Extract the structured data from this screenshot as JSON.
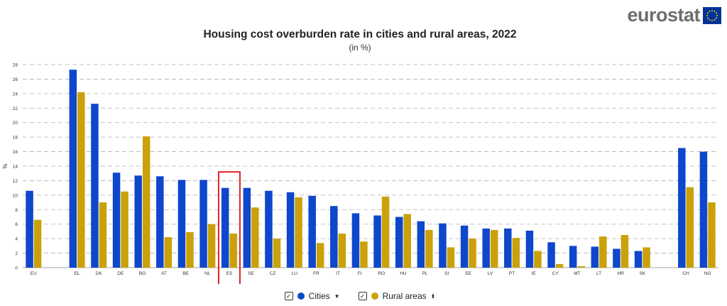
{
  "brand": {
    "name": "eurostat"
  },
  "chart_data": {
    "type": "bar",
    "title": "Housing cost overburden rate in cities and rural areas, 2022",
    "subtitle": "(in %)",
    "ylabel": "%",
    "xlabel": "",
    "ylim": [
      0,
      28
    ],
    "yticks": [
      0,
      2,
      4,
      6,
      8,
      10,
      12,
      14,
      16,
      18,
      20,
      22,
      24,
      26,
      28
    ],
    "grid": true,
    "legend_position": "bottom",
    "highlight": "ES",
    "categories": [
      "EU",
      "",
      "EL",
      "DK",
      "DE",
      "BG",
      "AT",
      "BE",
      "NL",
      "ES",
      "SE",
      "CZ",
      "LU",
      "FR",
      "IT",
      "FI",
      "RO",
      "HU",
      "PL",
      "SI",
      "EE",
      "LV",
      "PT",
      "IE",
      "CY",
      "MT",
      "LT",
      "HR",
      "SK",
      "",
      "CH",
      "NO"
    ],
    "series": [
      {
        "name": "Cities",
        "color": "#0e47cb",
        "values": [
          10.6,
          null,
          27.3,
          22.6,
          13.1,
          12.7,
          12.6,
          12.1,
          12.1,
          11.0,
          11.0,
          10.6,
          10.4,
          9.9,
          8.5,
          7.5,
          7.2,
          7.0,
          6.4,
          6.1,
          5.8,
          5.4,
          5.4,
          5.1,
          3.5,
          3.0,
          2.9,
          2.6,
          2.3,
          null,
          16.5,
          16.0
        ]
      },
      {
        "name": "Rural areas",
        "color": "#caa10a",
        "values": [
          6.6,
          null,
          24.2,
          9.0,
          10.5,
          18.1,
          4.2,
          4.9,
          6.0,
          4.7,
          8.3,
          4.0,
          9.7,
          3.4,
          4.7,
          3.6,
          9.8,
          7.4,
          5.2,
          2.8,
          4.0,
          5.2,
          4.1,
          2.3,
          0.5,
          0.2,
          4.3,
          4.5,
          2.8,
          null,
          11.1,
          9.0
        ]
      }
    ]
  },
  "legend": {
    "items": [
      {
        "label": "Cities",
        "checked": true,
        "color": "#0e47cb",
        "sort_icon": "caret-down-icon"
      },
      {
        "label": "Rural areas",
        "checked": true,
        "color": "#caa10a",
        "sort_icon": "sort-icon"
      }
    ]
  },
  "colors": {
    "highlight_box": "#e3202a",
    "grid": "#b0b0b0",
    "brand_text": "#6d6e71",
    "flag": "#003399",
    "flag_stars": "#ffcc00"
  }
}
